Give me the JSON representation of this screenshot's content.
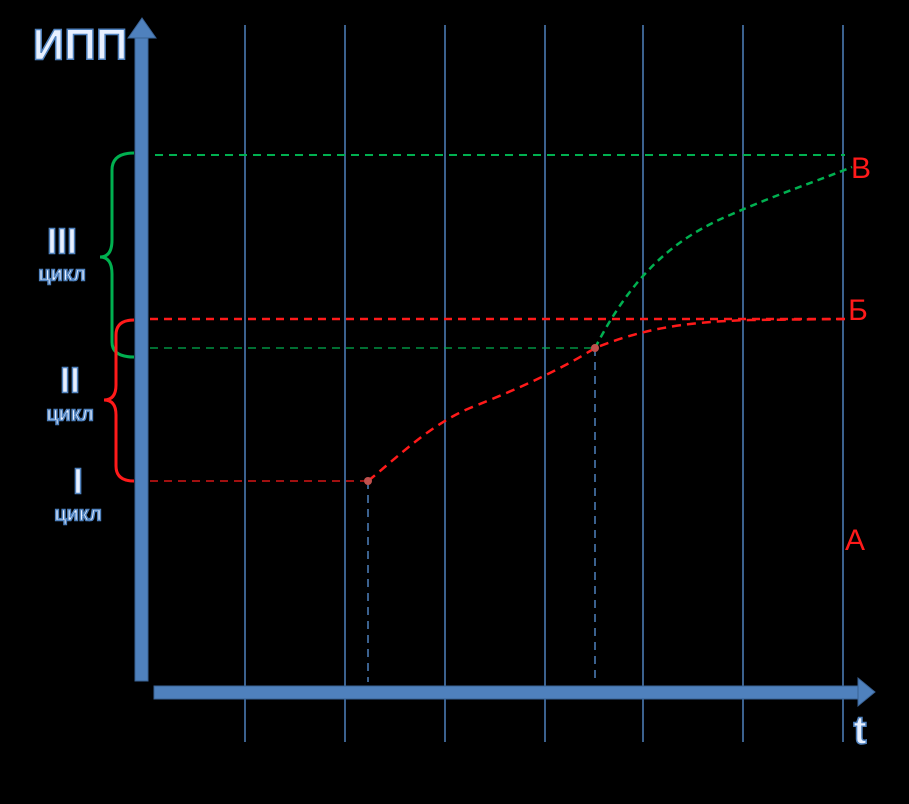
{
  "axes": {
    "y_label": "ИПП",
    "x_label": "t"
  },
  "levels": {
    "top": "В",
    "middle": "Б",
    "bottom": "А"
  },
  "cycles": [
    {
      "number": "III",
      "word": "цикл"
    },
    {
      "number": "II",
      "word": "цикл"
    },
    {
      "number": "I",
      "word": "цикл"
    }
  ]
}
